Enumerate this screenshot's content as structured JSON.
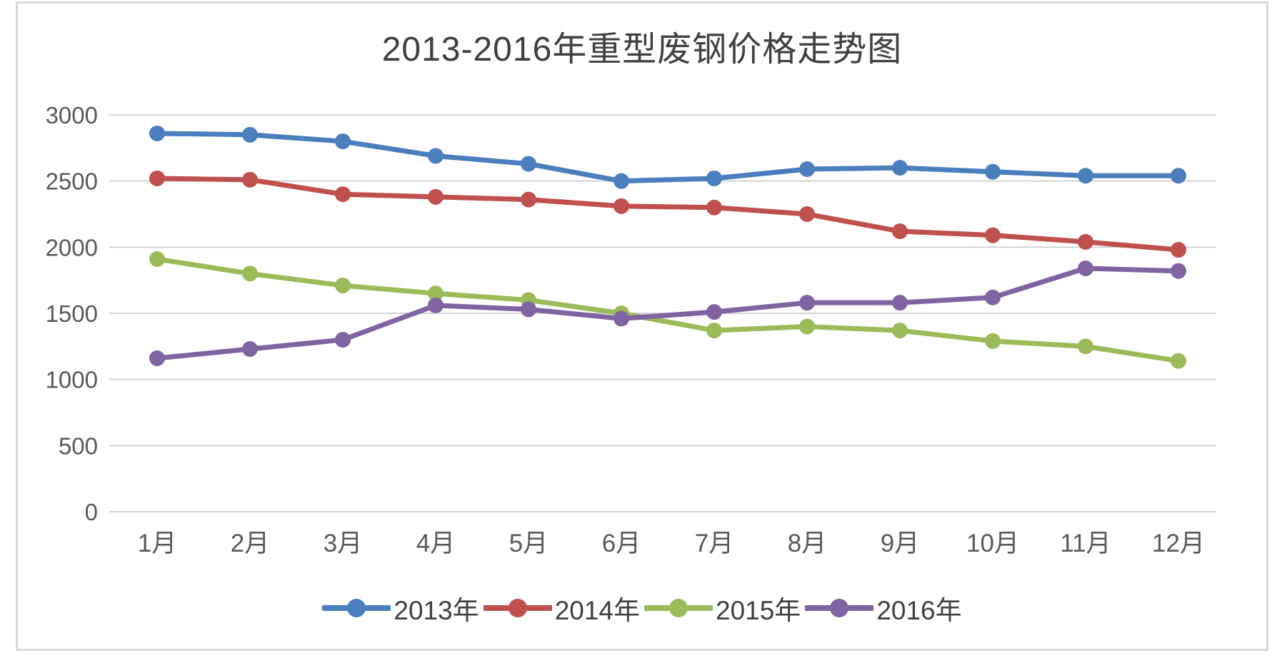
{
  "chart_data": {
    "type": "line",
    "title": "2013-2016年重型废钢价格走势图",
    "categories": [
      "1月",
      "2月",
      "3月",
      "4月",
      "5月",
      "6月",
      "7月",
      "8月",
      "9月",
      "10月",
      "11月",
      "12月"
    ],
    "series": [
      {
        "name": "2013年",
        "color": "#4A7EBD",
        "values": [
          2860,
          2850,
          2800,
          2690,
          2630,
          2500,
          2520,
          2590,
          2600,
          2570,
          2540,
          2540
        ]
      },
      {
        "name": "2014年",
        "color": "#C0504D",
        "values": [
          2520,
          2510,
          2400,
          2380,
          2360,
          2310,
          2300,
          2250,
          2120,
          2090,
          2040,
          1980
        ]
      },
      {
        "name": "2015年",
        "color": "#9BBB59",
        "values": [
          1910,
          1800,
          1710,
          1650,
          1600,
          1500,
          1370,
          1400,
          1370,
          1290,
          1250,
          1140
        ]
      },
      {
        "name": "2016年",
        "color": "#8064A2",
        "values": [
          1160,
          1230,
          1300,
          1560,
          1530,
          1460,
          1510,
          1580,
          1580,
          1620,
          1840,
          1820
        ]
      }
    ],
    "xlabel": "",
    "ylabel": "",
    "ylim": [
      0,
      3000
    ],
    "ytick": 500,
    "ytick_labels": [
      "0",
      "500",
      "1000",
      "1500",
      "2000",
      "2500",
      "3000"
    ],
    "grid": "horizontal",
    "legend_position": "bottom",
    "marker": "circle",
    "colors": {
      "grid": "#D3D3D3",
      "axis_text": "#595959",
      "title_text": "#3F3F3F",
      "legend_text": "#404040",
      "frame_border": "#D9D9D9",
      "background": "#FFFFFF"
    }
  }
}
